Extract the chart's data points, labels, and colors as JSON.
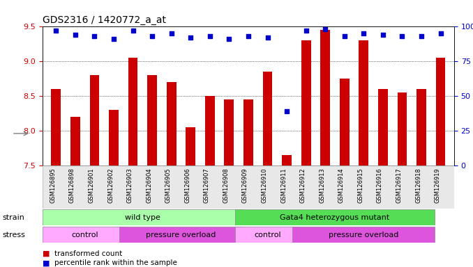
{
  "title": "GDS2316 / 1420772_a_at",
  "samples": [
    "GSM126895",
    "GSM126898",
    "GSM126901",
    "GSM126902",
    "GSM126903",
    "GSM126904",
    "GSM126905",
    "GSM126906",
    "GSM126907",
    "GSM126908",
    "GSM126909",
    "GSM126910",
    "GSM126911",
    "GSM126912",
    "GSM126913",
    "GSM126914",
    "GSM126915",
    "GSM126916",
    "GSM126917",
    "GSM126918",
    "GSM126919"
  ],
  "bar_values": [
    8.6,
    8.2,
    8.8,
    8.3,
    9.05,
    8.8,
    8.7,
    8.05,
    8.5,
    8.45,
    8.45,
    8.85,
    7.65,
    9.3,
    9.45,
    8.75,
    9.3,
    8.6,
    8.55,
    8.6,
    9.05
  ],
  "percentile_values": [
    97,
    94,
    93,
    91,
    97,
    93,
    95,
    92,
    93,
    91,
    93,
    92,
    39,
    97,
    98,
    93,
    95,
    94,
    93,
    93,
    95
  ],
  "bar_color": "#cc0000",
  "dot_color": "#0000cc",
  "ylim_left": [
    7.5,
    9.5
  ],
  "ylim_right": [
    0,
    100
  ],
  "yticks_left": [
    7.5,
    8.0,
    8.5,
    9.0,
    9.5
  ],
  "yticks_right": [
    0,
    25,
    50,
    75,
    100
  ],
  "grid_values": [
    8.0,
    8.5,
    9.0
  ],
  "strain_groups": [
    {
      "label": "wild type",
      "start": 0,
      "end": 10,
      "color": "#aaffaa"
    },
    {
      "label": "Gata4 heterozygous mutant",
      "start": 10,
      "end": 20,
      "color": "#55dd55"
    }
  ],
  "stress_groups": [
    {
      "label": "control",
      "start": 0,
      "end": 4,
      "color": "#ffaaff"
    },
    {
      "label": "pressure overload",
      "start": 4,
      "end": 10,
      "color": "#dd55dd"
    },
    {
      "label": "control",
      "start": 10,
      "end": 13,
      "color": "#ffaaff"
    },
    {
      "label": "pressure overload",
      "start": 13,
      "end": 20,
      "color": "#dd55dd"
    }
  ],
  "legend_items": [
    {
      "label": "transformed count",
      "color": "#cc0000",
      "marker": "s"
    },
    {
      "label": "percentile rank within the sample",
      "color": "#0000cc",
      "marker": "s"
    }
  ],
  "bg_color": "#e8e8e8",
  "plot_bg": "#ffffff"
}
